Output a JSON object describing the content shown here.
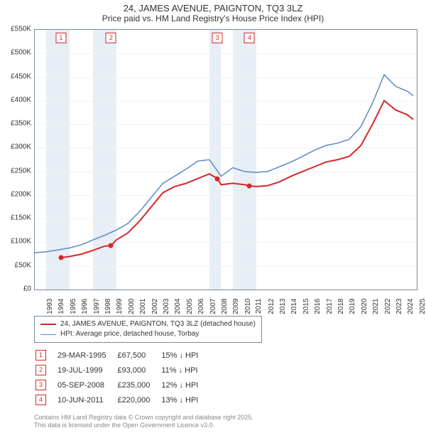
{
  "title": {
    "line1": "24, JAMES AVENUE, PAIGNTON, TQ3 3LZ",
    "line2": "Price paid vs. HM Land Registry's House Price Index (HPI)"
  },
  "chart": {
    "x_years": [
      1993,
      1994,
      1995,
      1996,
      1997,
      1998,
      1999,
      2000,
      2001,
      2002,
      2003,
      2004,
      2005,
      2006,
      2007,
      2008,
      2009,
      2010,
      2011,
      2012,
      2013,
      2014,
      2015,
      2016,
      2017,
      2018,
      2019,
      2020,
      2021,
      2022,
      2023,
      2024,
      2025
    ],
    "xlim": [
      1993,
      2025.8
    ],
    "ylim": [
      0,
      550000
    ],
    "ytick_step": 50000,
    "ytick_labels": [
      "£0",
      "£50K",
      "£100K",
      "£150K",
      "£200K",
      "£250K",
      "£300K",
      "£350K",
      "£400K",
      "£450K",
      "£500K",
      "£550K"
    ],
    "band_years": [
      [
        1994,
        1996
      ],
      [
        1998,
        2000
      ],
      [
        2008,
        2009
      ],
      [
        2010,
        2012
      ]
    ],
    "gridline_color": "#f2f2f2",
    "band_color": "#e8eef5",
    "background_color": "#ffffff",
    "plot_border_color": "#7b8a99",
    "series": {
      "property": {
        "label": "24, JAMES AVENUE, PAIGNTON, TQ3 3LZ (detached house)",
        "color": "#d62728",
        "line_width": 2,
        "points": [
          [
            1995.25,
            67500
          ],
          [
            1996,
            70000
          ],
          [
            1997,
            75000
          ],
          [
            1998,
            83000
          ],
          [
            1999,
            92000
          ],
          [
            1999.55,
            93000
          ],
          [
            2000,
            105000
          ],
          [
            2001,
            120000
          ],
          [
            2002,
            145000
          ],
          [
            2003,
            175000
          ],
          [
            2004,
            205000
          ],
          [
            2005,
            218000
          ],
          [
            2006,
            225000
          ],
          [
            2007,
            235000
          ],
          [
            2008,
            245000
          ],
          [
            2008.68,
            235000
          ],
          [
            2009,
            222000
          ],
          [
            2010,
            225000
          ],
          [
            2011,
            222000
          ],
          [
            2011.44,
            220000
          ],
          [
            2012,
            218000
          ],
          [
            2013,
            220000
          ],
          [
            2014,
            228000
          ],
          [
            2015,
            240000
          ],
          [
            2016,
            250000
          ],
          [
            2017,
            260000
          ],
          [
            2018,
            270000
          ],
          [
            2019,
            275000
          ],
          [
            2020,
            282000
          ],
          [
            2021,
            305000
          ],
          [
            2022,
            350000
          ],
          [
            2023,
            400000
          ],
          [
            2024,
            380000
          ],
          [
            2025,
            370000
          ],
          [
            2025.5,
            360000
          ]
        ]
      },
      "hpi": {
        "label": "HPI: Average price, detached house, Torbay",
        "color": "#5a8ac6",
        "line_width": 1.5,
        "points": [
          [
            1993,
            78000
          ],
          [
            1994,
            80000
          ],
          [
            1995,
            84000
          ],
          [
            1996,
            88000
          ],
          [
            1997,
            95000
          ],
          [
            1998,
            105000
          ],
          [
            1999,
            115000
          ],
          [
            2000,
            126000
          ],
          [
            2001,
            140000
          ],
          [
            2002,
            165000
          ],
          [
            2003,
            195000
          ],
          [
            2004,
            225000
          ],
          [
            2005,
            240000
          ],
          [
            2006,
            255000
          ],
          [
            2007,
            272000
          ],
          [
            2008,
            275000
          ],
          [
            2009,
            240000
          ],
          [
            2010,
            258000
          ],
          [
            2011,
            250000
          ],
          [
            2012,
            248000
          ],
          [
            2013,
            250000
          ],
          [
            2014,
            260000
          ],
          [
            2015,
            270000
          ],
          [
            2016,
            282000
          ],
          [
            2017,
            295000
          ],
          [
            2018,
            305000
          ],
          [
            2019,
            310000
          ],
          [
            2020,
            318000
          ],
          [
            2021,
            345000
          ],
          [
            2022,
            395000
          ],
          [
            2023,
            455000
          ],
          [
            2024,
            430000
          ],
          [
            2025,
            420000
          ],
          [
            2025.5,
            410000
          ]
        ]
      }
    },
    "sale_markers": {
      "color": "#d62728",
      "radius": 3.5,
      "points": [
        {
          "n": "1",
          "x": 1995.25,
          "y": 67500
        },
        {
          "n": "2",
          "x": 1999.55,
          "y": 93000
        },
        {
          "n": "3",
          "x": 2008.68,
          "y": 235000
        },
        {
          "n": "4",
          "x": 2011.44,
          "y": 220000
        }
      ]
    }
  },
  "legend": {
    "rows": [
      {
        "color": "#d62728",
        "width": 2,
        "label": "24, JAMES AVENUE, PAIGNTON, TQ3 3LZ (detached house)"
      },
      {
        "color": "#5a8ac6",
        "width": 1.5,
        "label": "HPI: Average price, detached house, Torbay"
      }
    ]
  },
  "sales_table": {
    "rows": [
      {
        "n": "1",
        "date": "29-MAR-1995",
        "price": "£67,500",
        "delta": "15% ↓ HPI"
      },
      {
        "n": "2",
        "date": "19-JUL-1999",
        "price": "£93,000",
        "delta": "11% ↓ HPI"
      },
      {
        "n": "3",
        "date": "05-SEP-2008",
        "price": "£235,000",
        "delta": "12% ↓ HPI"
      },
      {
        "n": "4",
        "date": "10-JUN-2011",
        "price": "£220,000",
        "delta": "13% ↓ HPI"
      }
    ]
  },
  "footer": {
    "line1": "Contains HM Land Registry data © Crown copyright and database right 2025.",
    "line2": "This data is licensed under the Open Government Licence v3.0."
  }
}
